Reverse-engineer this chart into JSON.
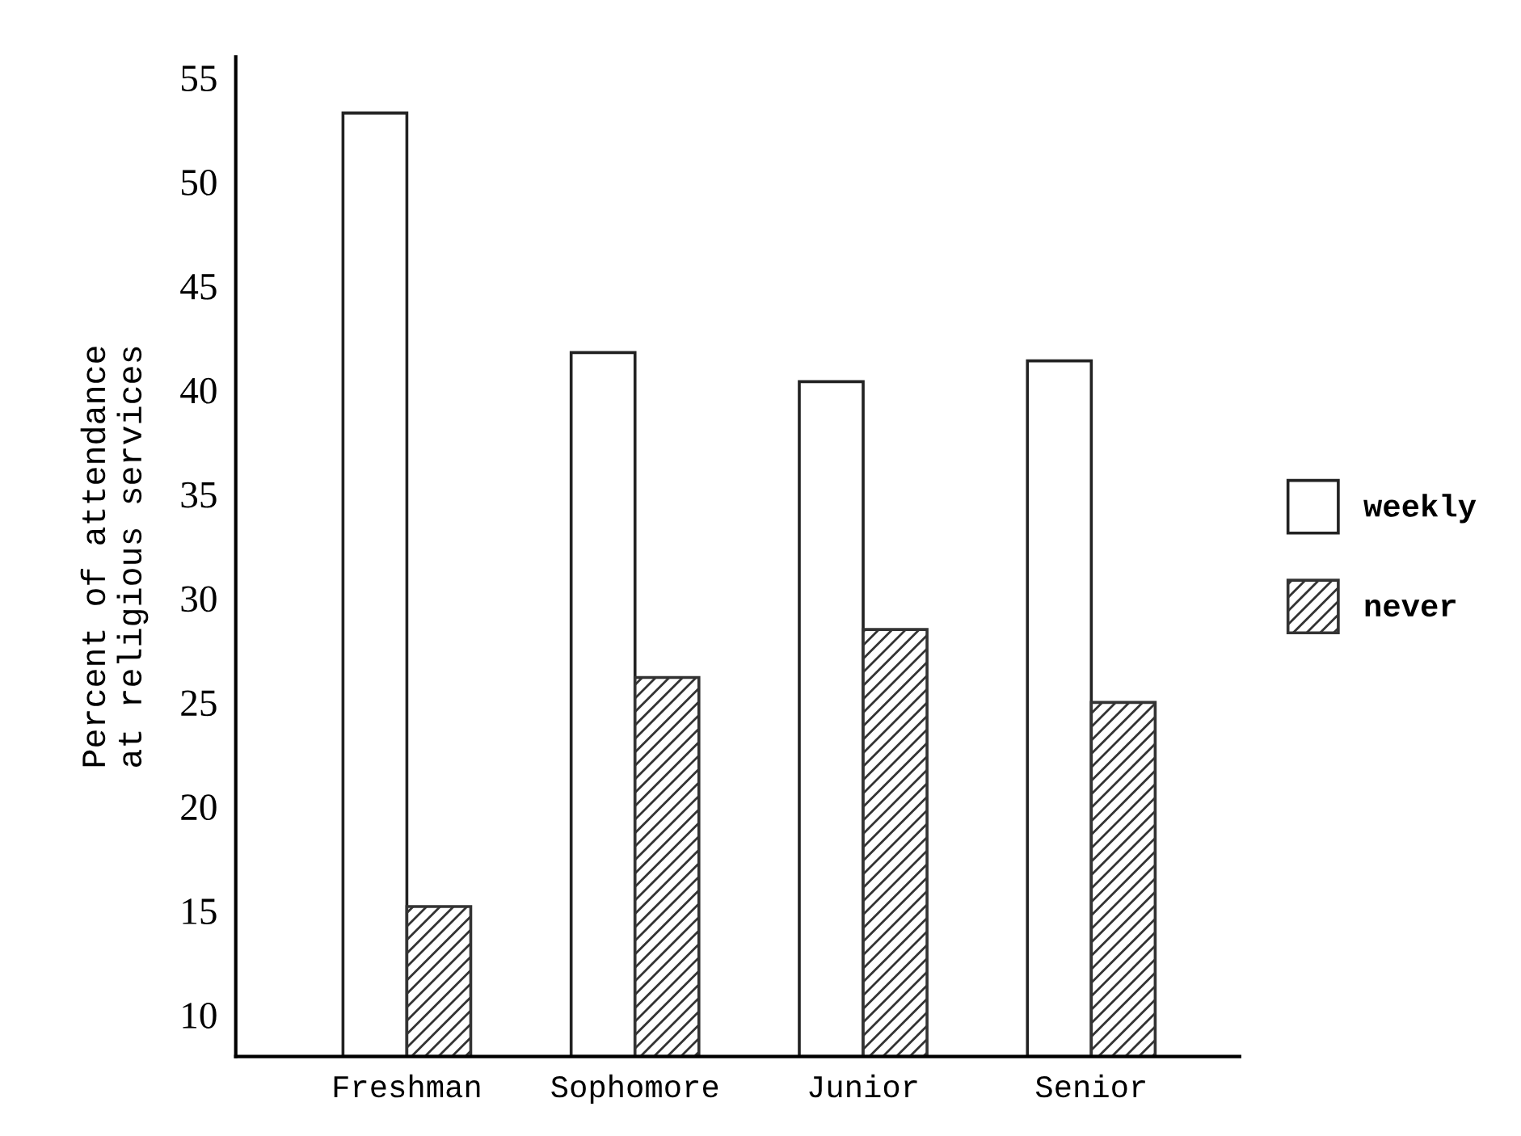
{
  "chart_data": {
    "type": "bar",
    "ylabel": "Percent of attendance\nat religious services",
    "categories": [
      "Freshman",
      "Sophomore",
      "Junior",
      "Senior"
    ],
    "series": [
      {
        "name": "weekly",
        "color": "#ffffff",
        "values": [
          53.3,
          41.8,
          40.4,
          41.4
        ]
      },
      {
        "name": "never",
        "color": "#333333",
        "values": [
          15.2,
          26.2,
          28.5,
          25.0
        ]
      }
    ],
    "ylim": [
      8,
      56
    ],
    "yticks": [
      10,
      15,
      20,
      25,
      30,
      35,
      40,
      45,
      50,
      55
    ],
    "grid": false,
    "legend": "right"
  }
}
